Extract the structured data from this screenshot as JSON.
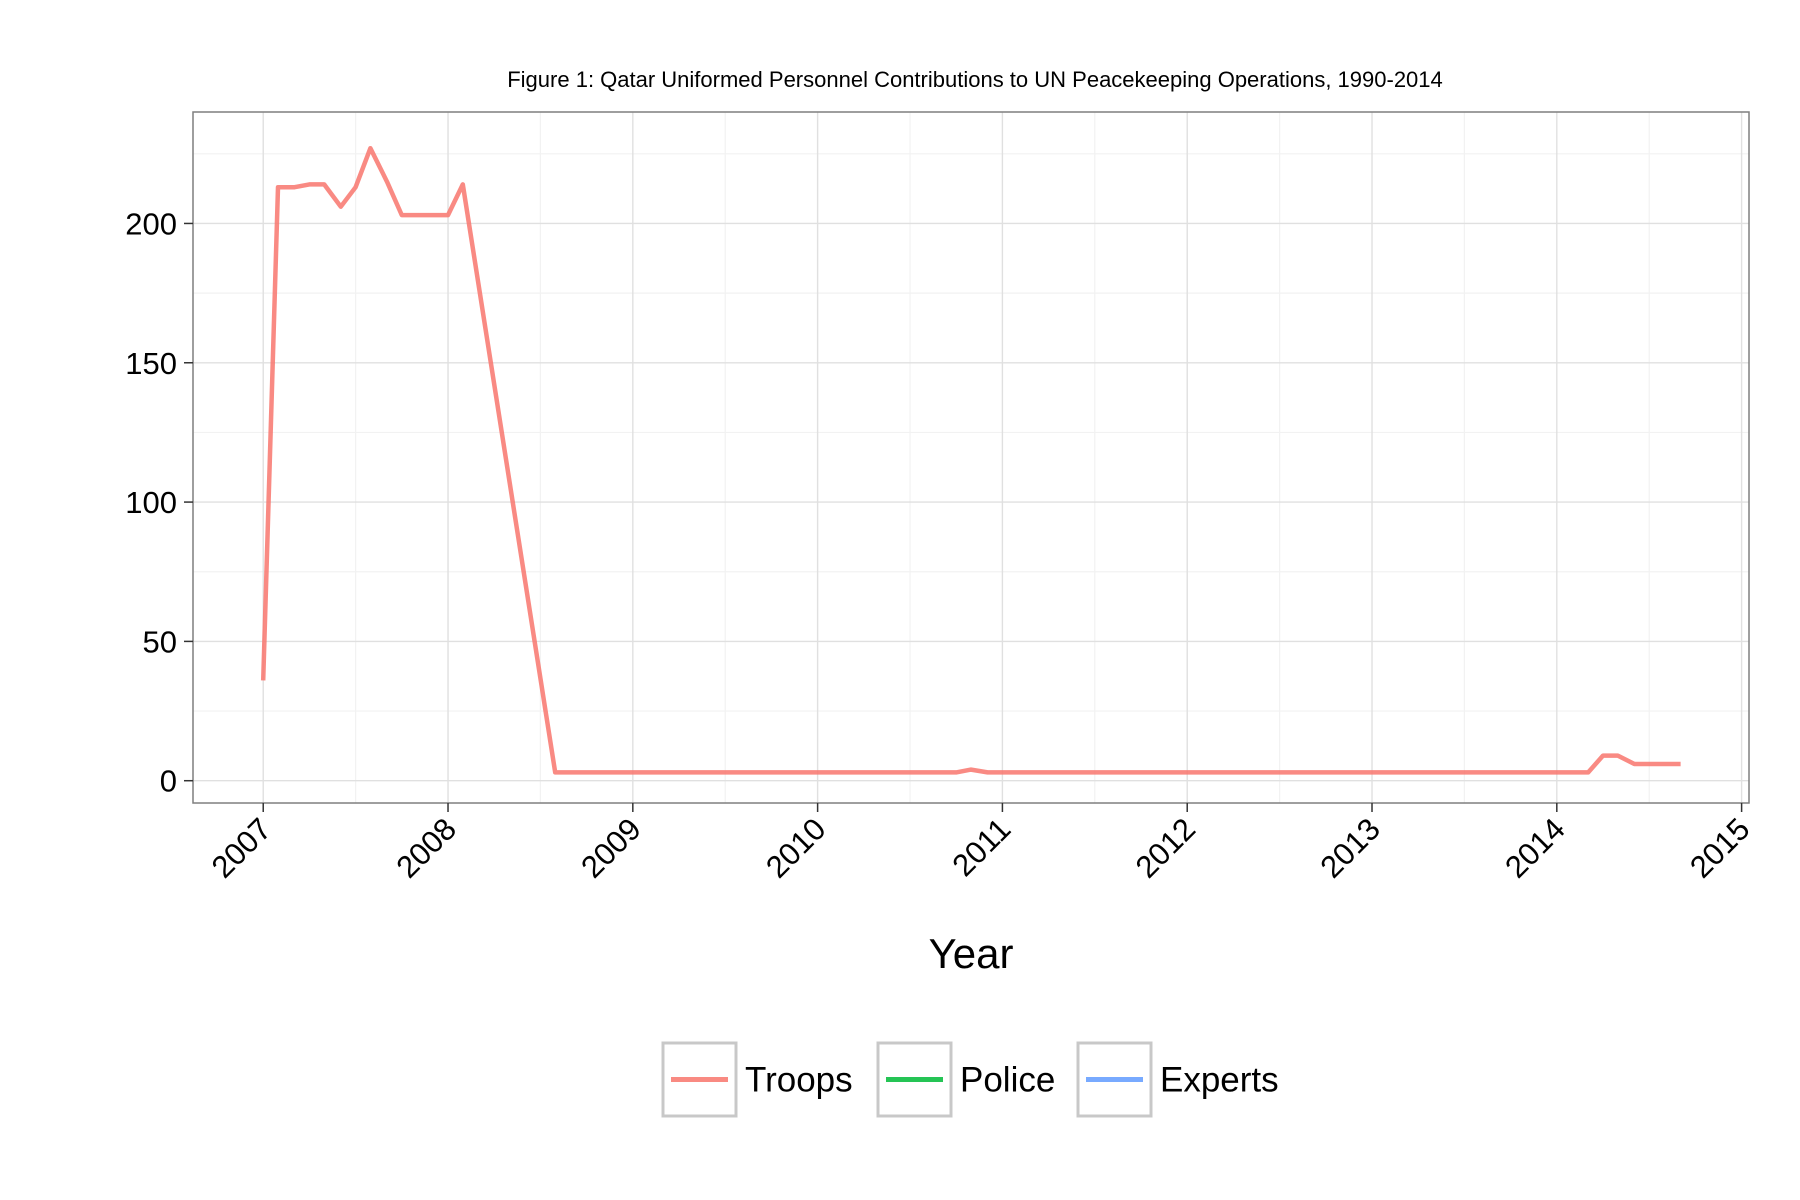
{
  "chart_data": {
    "type": "line",
    "title": "Figure 1: Qatar Uniformed Personnel Contributions to UN Peacekeeping Operations, 1990-2014",
    "xlabel": "Year",
    "ylabel": "",
    "xlim": [
      2006.62,
      2015.04
    ],
    "ylim": [
      -8,
      240
    ],
    "x_ticks": [
      "2007",
      "2008",
      "2009",
      "2010",
      "2011",
      "2012",
      "2013",
      "2014",
      "2015"
    ],
    "y_ticks": [
      "0",
      "50",
      "100",
      "150",
      "200"
    ],
    "grid": true,
    "legend_position": "bottom",
    "series": [
      {
        "name": "Troops",
        "color": "#F8766D",
        "x": [
          2007.0,
          2007.08,
          2007.17,
          2007.25,
          2007.33,
          2007.42,
          2007.5,
          2007.58,
          2007.67,
          2007.75,
          2007.83,
          2007.92,
          2008.0,
          2008.08,
          2008.58,
          2008.67,
          2009.0,
          2010.0,
          2010.75,
          2010.83,
          2010.92,
          2011.0,
          2012.0,
          2013.0,
          2014.0,
          2014.17,
          2014.25,
          2014.33,
          2014.42,
          2014.5,
          2014.58,
          2014.67
        ],
        "y": [
          36,
          213,
          213,
          214,
          214,
          206,
          213,
          227,
          215,
          203,
          203,
          203,
          203,
          214,
          3,
          3,
          3,
          3,
          3,
          4,
          3,
          3,
          3,
          3,
          3,
          3,
          9,
          9,
          6,
          6,
          6,
          6
        ]
      },
      {
        "name": "Police",
        "color": "#00BA38",
        "x": [],
        "y": []
      },
      {
        "name": "Experts",
        "color": "#619CFF",
        "x": [],
        "y": []
      }
    ]
  }
}
